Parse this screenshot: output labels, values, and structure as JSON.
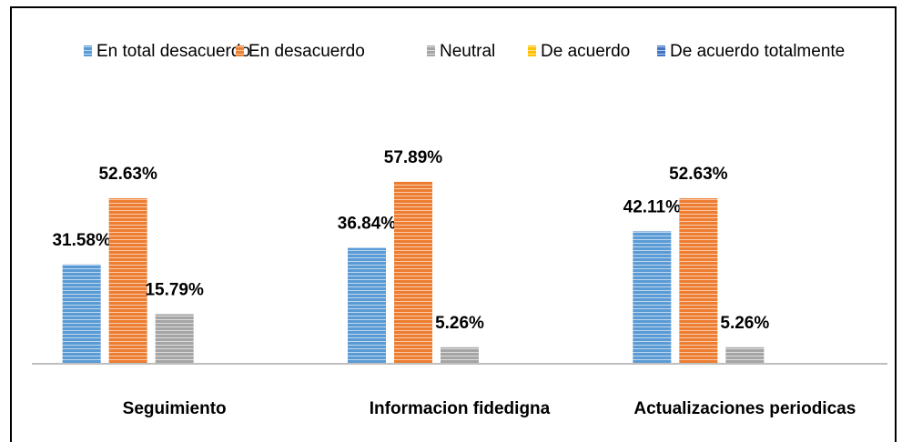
{
  "chart_data": {
    "type": "bar",
    "categories": [
      "Seguimiento",
      "Informacion fidedigna",
      "Actualizaciones periodicas"
    ],
    "series": [
      {
        "name": "En total desacuerdo",
        "color": "#5b9bd5",
        "values": [
          31.58,
          36.84,
          42.11
        ],
        "value_labels": [
          "31.58%",
          "36.84%",
          "42.11%"
        ]
      },
      {
        "name": "En desacuerdo",
        "color": "#ed7d31",
        "values": [
          52.63,
          57.89,
          52.63
        ],
        "value_labels": [
          "52.63%",
          "57.89%",
          "52.63%"
        ]
      },
      {
        "name": "Neutral",
        "color": "#a5a5a5",
        "values": [
          15.79,
          5.26,
          5.26
        ],
        "value_labels": [
          "15.79%",
          "5.26%",
          "5.26%"
        ]
      },
      {
        "name": "De acuerdo",
        "color": "#ffc000",
        "values": [
          0,
          0,
          0
        ]
      },
      {
        "name": "De acuerdo totalmente",
        "color": "#4472c4",
        "values": [
          0,
          0,
          0
        ]
      }
    ],
    "ylim": [
      0,
      60
    ],
    "legend": "top"
  }
}
